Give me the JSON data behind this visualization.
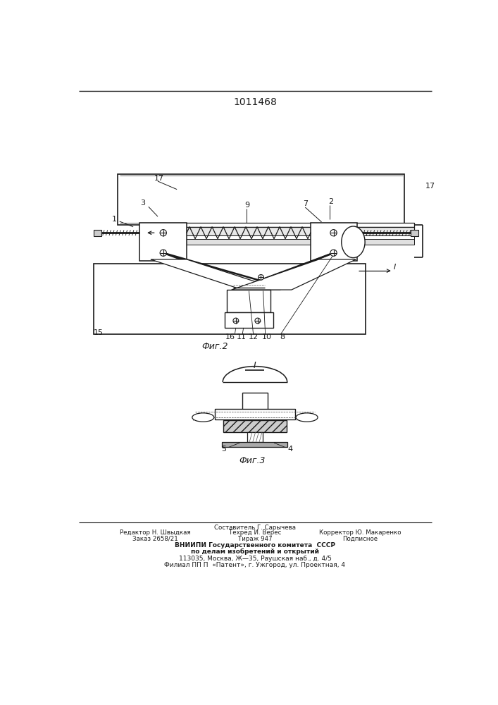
{
  "title": "1011468",
  "fig2_label": "Фиг.2",
  "fig3_label": "Фиг.3",
  "lc": "#1a1a1a",
  "footer": {
    "col1": [
      "Редактор Н. Швыдкая",
      "Заказ 2658/21"
    ],
    "col2_top": "Составитель Г. Сарычева",
    "col2": [
      "Техред И. Верес",
      "Тираж 947"
    ],
    "col3": [
      "Корректор Ю. Макаренко",
      "Подписное"
    ],
    "line1": "ВНИИПИ Государственного комитета  СССР",
    "line2": "по делам изобретений и открытий",
    "line3": "113035, Москва, Ж—35, Раушская наб., д. 4/5",
    "line4": "Филиал ППП «Патент», г. Ужгород, ул. Проектная, 4"
  }
}
